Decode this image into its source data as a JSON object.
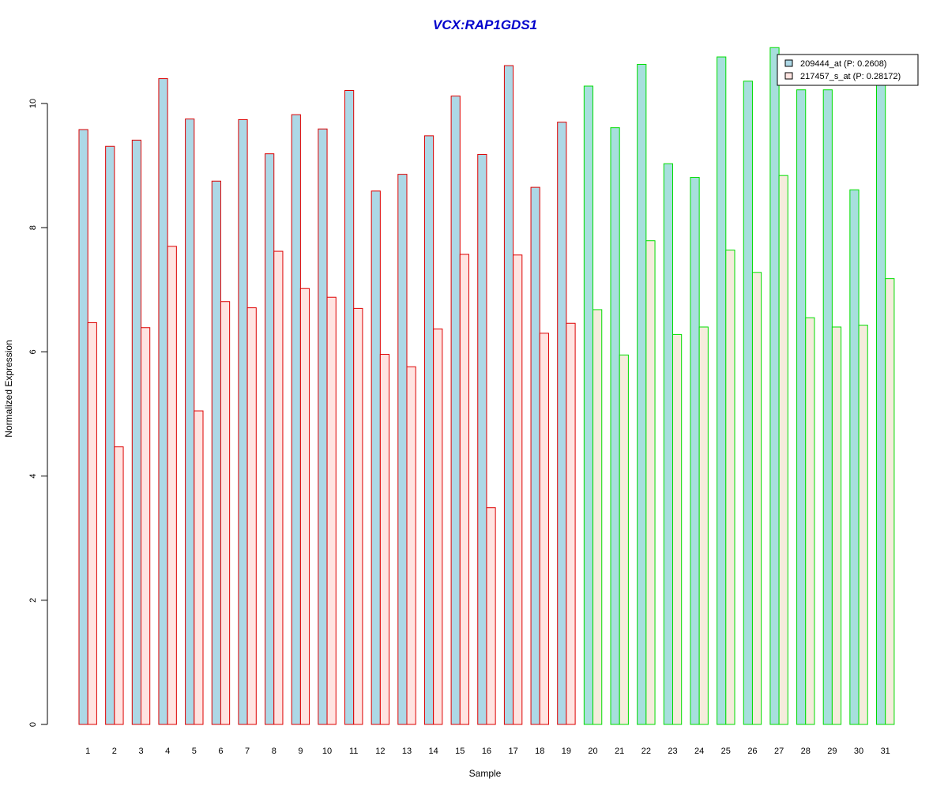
{
  "chart_data": {
    "type": "bar",
    "title": "VCX:RAP1GDS1",
    "xlabel": "Sample",
    "ylabel": "Normalized Expression",
    "ylim": [
      0,
      11
    ],
    "yticks": [
      "0",
      "2",
      "4",
      "6",
      "8",
      "10"
    ],
    "categories": [
      "1",
      "2",
      "3",
      "4",
      "5",
      "6",
      "7",
      "8",
      "9",
      "10",
      "11",
      "12",
      "13",
      "14",
      "15",
      "16",
      "17",
      "18",
      "19",
      "20",
      "21",
      "22",
      "23",
      "24",
      "25",
      "26",
      "27",
      "28",
      "29",
      "30",
      "31"
    ],
    "series": [
      {
        "name": "209444_at (P: 0.2608)",
        "values": [
          9.58,
          9.31,
          9.41,
          10.4,
          9.75,
          8.75,
          9.74,
          9.19,
          9.82,
          9.59,
          10.21,
          8.59,
          8.86,
          9.48,
          10.12,
          9.18,
          10.61,
          8.65,
          9.7,
          10.28,
          9.61,
          10.63,
          9.03,
          8.81,
          10.75,
          10.36,
          10.9,
          10.22,
          10.22,
          8.61,
          10.3
        ]
      },
      {
        "name": "217457_s_at (P: 0.28172)",
        "values": [
          6.47,
          4.47,
          6.39,
          7.7,
          5.05,
          6.81,
          6.71,
          7.62,
          7.02,
          6.88,
          6.7,
          5.96,
          5.76,
          6.37,
          7.57,
          3.49,
          7.56,
          6.3,
          6.46,
          6.68,
          5.95,
          7.79,
          6.28,
          6.4,
          7.64,
          7.28,
          8.84,
          6.55,
          6.4,
          6.43,
          7.18
        ]
      }
    ],
    "group_of_sample": [
      "a",
      "a",
      "a",
      "a",
      "a",
      "a",
      "a",
      "a",
      "a",
      "a",
      "a",
      "a",
      "a",
      "a",
      "a",
      "a",
      "a",
      "a",
      "a",
      "b",
      "b",
      "b",
      "b",
      "b",
      "b",
      "b",
      "b",
      "b",
      "b",
      "b",
      "b"
    ],
    "colors": {
      "title": "#0000cc",
      "group_a_outline": "#dd0000",
      "group_b_outline": "#00dd00",
      "group_a_fill_series1": "#add8e6",
      "group_a_fill_series2": "#ffe4e1",
      "group_b_fill_series1": "#a7dfdd",
      "group_b_fill_series2": "#f5ecdc",
      "legend_fill_series1": "#add8e6",
      "legend_fill_series2": "#ffe4e1"
    },
    "legend_position": "top-right",
    "grid": false
  }
}
